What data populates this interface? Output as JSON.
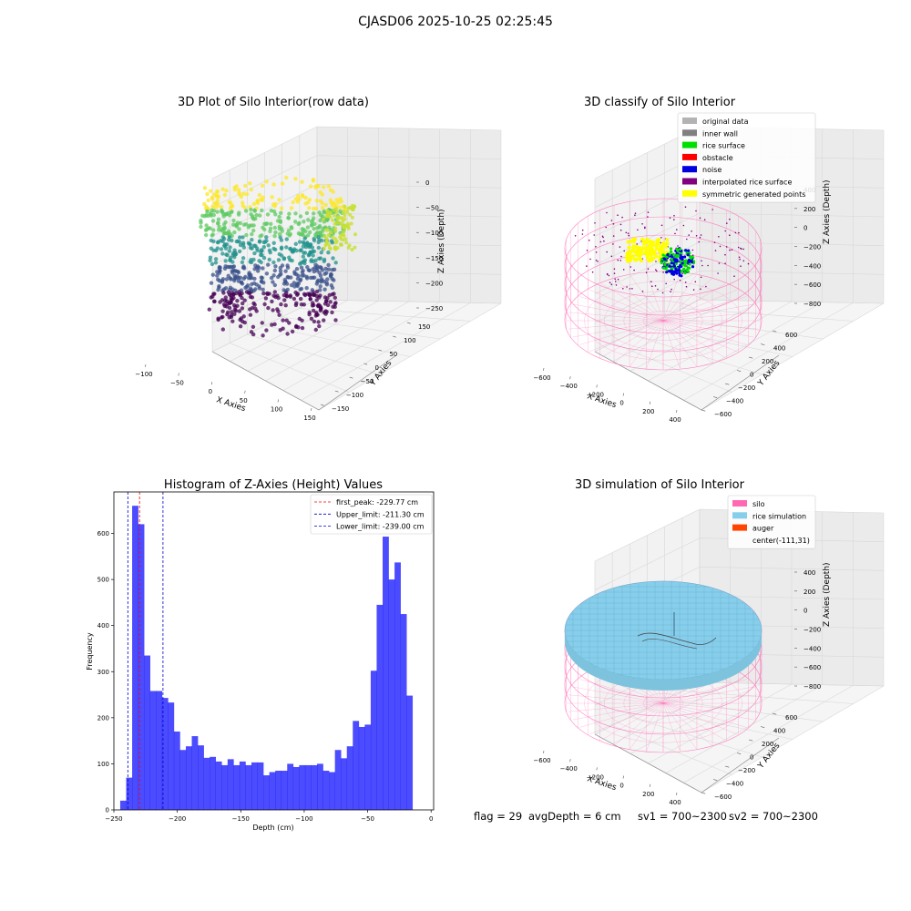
{
  "figure_title": "CJASD06 2025-10-25 02:25:45",
  "status": {
    "flag": "flag = 29",
    "avg_depth": "avgDepth = 6 cm",
    "sv1": "sv1 = 700~2300",
    "sv2": "sv2 = 700~2300"
  },
  "chart_data": [
    {
      "type": "scatter",
      "title": "3D Plot of Silo Interior(row data)",
      "xlabel": "X Axies",
      "ylabel": "Y Axies",
      "zlabel": "Z Axies (Depth)",
      "x_ticks": [
        "−100",
        "−50",
        "0",
        "50",
        "100",
        "150"
      ],
      "y_ticks": [
        "−150",
        "−100",
        "−50",
        "0",
        "50",
        "100",
        "150"
      ],
      "z_ticks": [
        "0",
        "−50",
        "−100",
        "−150",
        "−200",
        "−250"
      ],
      "xlim": [
        -120,
        180
      ],
      "ylim": [
        -160,
        160
      ],
      "zlim": [
        -260,
        0
      ],
      "colormap": "viridis",
      "colors": [
        "#440154",
        "#3b528b",
        "#21918c",
        "#5ec962",
        "#fde725"
      ],
      "grid": true
    },
    {
      "type": "scatter",
      "title": "3D classify of Silo Interior",
      "xlabel": "X Axies",
      "ylabel": "Y Axies",
      "zlabel": "Z Axies (Depth)",
      "x_ticks": [
        "−600",
        "−400",
        "−200",
        "0",
        "200",
        "400"
      ],
      "y_ticks": [
        "−600",
        "−400",
        "−200",
        "0",
        "200",
        "400",
        "600"
      ],
      "z_ticks": [
        "400",
        "200",
        "0",
        "−200",
        "−400",
        "−600",
        "−800"
      ],
      "legend_position": "top-right",
      "legend": [
        {
          "label": "original data",
          "color": "#b3b3b3"
        },
        {
          "label": "inner wall",
          "color": "#808080"
        },
        {
          "label": "rice surface",
          "color": "#00e000"
        },
        {
          "label": "obstacle",
          "color": "#ff0000"
        },
        {
          "label": "noise",
          "color": "#0000e0"
        },
        {
          "label": "interpolated rice surface",
          "color": "#800080"
        },
        {
          "label": "symmetric generated points",
          "color": "#ffff00"
        }
      ],
      "silo_color": "#ff69b4",
      "grid": true
    },
    {
      "type": "bar",
      "title": "Histogram of Z-Axies (Height) Values",
      "xlabel": "Depth (cm)",
      "ylabel": "Frequency",
      "xlim": [
        -250,
        2
      ],
      "ylim": [
        0,
        690
      ],
      "x_ticks": [
        -250,
        -200,
        -150,
        -100,
        -50,
        0
      ],
      "x_tick_labels": [
        "−250",
        "−200",
        "−150",
        "−100",
        "−50",
        "0"
      ],
      "y_ticks": [
        0,
        100,
        200,
        300,
        400,
        500,
        600
      ],
      "bar_color": "#0000ff",
      "bin_start": -245,
      "bin_width": 4.7,
      "values": [
        20,
        70,
        660,
        620,
        335,
        258,
        258,
        243,
        233,
        170,
        130,
        138,
        160,
        140,
        113,
        115,
        105,
        97,
        110,
        97,
        105,
        97,
        103,
        103,
        75,
        82,
        85,
        85,
        100,
        93,
        97,
        97,
        97,
        100,
        85,
        82,
        130,
        112,
        138,
        193,
        180,
        185,
        302,
        445,
        593,
        500,
        537,
        425,
        248
      ],
      "vlines": [
        {
          "label": "first_peak: -229.77 cm",
          "x": -229.77,
          "color": "#ff0000"
        },
        {
          "label": "Upper_limit: -211.30 cm",
          "x": -211.3,
          "color": "#0000cc"
        },
        {
          "label": "Lower_limit: -239.00 cm",
          "x": -239.0,
          "color": "#0000cc"
        }
      ],
      "legend_position": "top-right",
      "grid": false
    },
    {
      "type": "surface",
      "title": "3D simulation of Silo Interior",
      "xlabel": "X Axies",
      "ylabel": "Y Axies",
      "zlabel": "Z Axies (Depth)",
      "x_ticks": [
        "−600",
        "−400",
        "−200",
        "0",
        "200",
        "400"
      ],
      "y_ticks": [
        "−600",
        "−400",
        "−200",
        "0",
        "200",
        "400",
        "600"
      ],
      "z_ticks": [
        "400",
        "200",
        "0",
        "−200",
        "−400",
        "−600",
        "−800"
      ],
      "legend_position": "top-right",
      "legend": [
        {
          "label": "silo",
          "color": "#ff69b4"
        },
        {
          "label": "rice simulation",
          "color": "#87ceeb"
        },
        {
          "label": "auger",
          "color": "#ff4500"
        },
        {
          "label": "center(-111,31)",
          "color": ""
        }
      ],
      "grid": true
    }
  ]
}
